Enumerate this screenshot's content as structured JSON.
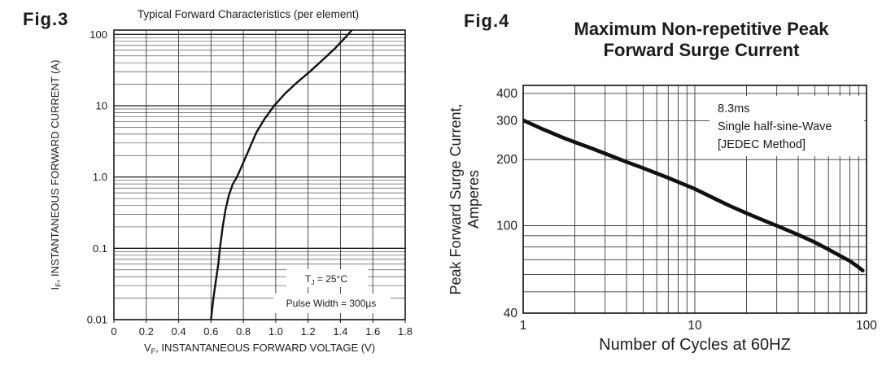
{
  "page": {
    "background": "#ffffff",
    "ink_color": "#1c1c1c",
    "grid_color": "#555555",
    "curve_color": "#111111"
  },
  "chart_data": [
    {
      "id": "fig3",
      "type": "line",
      "figure_label": "Fig.3",
      "title": "Typical Forward Characteristics (per element)",
      "x_scale": "linear",
      "y_scale": "log",
      "xlim": [
        0,
        1.8
      ],
      "ylim": [
        0.01,
        115
      ],
      "grid": true,
      "xlabel": {
        "pre": "V",
        "sub": "F",
        "post": ", INSTANTANEOUS FORWARD VOLTAGE (V)"
      },
      "ylabel": {
        "pre": "I",
        "sub": "F",
        "post": ", INSTANTANEOUS FORWARD CURRENT (A)"
      },
      "x_ticks": [
        0,
        0.2,
        0.4,
        0.6,
        0.8,
        1.0,
        1.2,
        1.4,
        1.6,
        1.8
      ],
      "x_tick_labels": [
        "0",
        "0.2",
        "0.4",
        "0.6",
        "0.8",
        "1.0",
        "1.2",
        "1.4",
        "1.6",
        "1.8"
      ],
      "y_labeled_ticks": [
        {
          "value": 100,
          "label": "100"
        },
        {
          "value": 10,
          "label": "10"
        },
        {
          "value": 1,
          "label": "1.0"
        },
        {
          "value": 0.1,
          "label": "0.1"
        },
        {
          "value": 0.01,
          "label": "0.01"
        }
      ],
      "annotations": [
        {
          "pre": "T",
          "sub": "J",
          "post": " = 25°C"
        },
        {
          "pre": "",
          "sub": "",
          "post": "Pulse Width = 300µs"
        }
      ],
      "series": [
        {
          "name": "typical-forward-characteristic",
          "points": [
            [
              0.6,
              0.01
            ],
            [
              0.615,
              0.02
            ],
            [
              0.63,
              0.035
            ],
            [
              0.645,
              0.06
            ],
            [
              0.655,
              0.1
            ],
            [
              0.672,
              0.2
            ],
            [
              0.69,
              0.35
            ],
            [
              0.71,
              0.55
            ],
            [
              0.735,
              0.8
            ],
            [
              0.76,
              1.0
            ],
            [
              0.8,
              1.6
            ],
            [
              0.84,
              2.6
            ],
            [
              0.88,
              4.2
            ],
            [
              0.93,
              6.5
            ],
            [
              0.99,
              10
            ],
            [
              1.06,
              15
            ],
            [
              1.13,
              21
            ],
            [
              1.21,
              30
            ],
            [
              1.29,
              44
            ],
            [
              1.37,
              65
            ],
            [
              1.44,
              96
            ],
            [
              1.47,
              115
            ]
          ]
        }
      ]
    },
    {
      "id": "fig4",
      "type": "line",
      "figure_label": "Fig.4",
      "title": "Maximum Non-repetitive Peak Forward Surge Current",
      "title_lines": [
        "Maximum Non-repetitive Peak",
        "Forward Surge Current"
      ],
      "x_scale": "log",
      "y_scale": "log",
      "xlim": [
        1,
        100
      ],
      "ylim": [
        40,
        435
      ],
      "grid": true,
      "xlabel": {
        "pre": "",
        "sub": "",
        "post": "Number of Cycles at 60HZ"
      },
      "ylabel_lines": [
        "Peak Forward Surge Current,",
        "Amperes"
      ],
      "x_labeled_ticks": [
        {
          "value": 1,
          "label": "1"
        },
        {
          "value": 10,
          "label": "10"
        },
        {
          "value": 100,
          "label": "100"
        }
      ],
      "y_labeled_ticks": [
        {
          "value": 400,
          "label": "400"
        },
        {
          "value": 300,
          "label": "300"
        },
        {
          "value": 200,
          "label": "200"
        },
        {
          "value": 100,
          "label": "100"
        },
        {
          "value": 40,
          "label": "40"
        }
      ],
      "annotations": [
        {
          "lines": [
            "8.3ms",
            "Single half-sine-Wave",
            "[JEDEC Method]"
          ]
        }
      ],
      "series": [
        {
          "name": "peak-forward-surge-current",
          "points": [
            [
              1,
              302
            ],
            [
              1.3,
              275
            ],
            [
              1.7,
              252
            ],
            [
              2,
              240
            ],
            [
              2.5,
              225
            ],
            [
              3,
              213
            ],
            [
              4,
              195
            ],
            [
              5,
              183
            ],
            [
              6,
              173
            ],
            [
              7,
              165
            ],
            [
              8,
              158
            ],
            [
              10,
              147
            ],
            [
              13,
              133
            ],
            [
              16,
              123
            ],
            [
              20,
              114
            ],
            [
              25,
              106
            ],
            [
              30,
              100
            ],
            [
              40,
              91
            ],
            [
              50,
              84
            ],
            [
              60,
              78
            ],
            [
              70,
              73
            ],
            [
              80,
              69
            ],
            [
              88,
              65.5
            ],
            [
              95,
              62.5
            ]
          ]
        }
      ]
    }
  ]
}
